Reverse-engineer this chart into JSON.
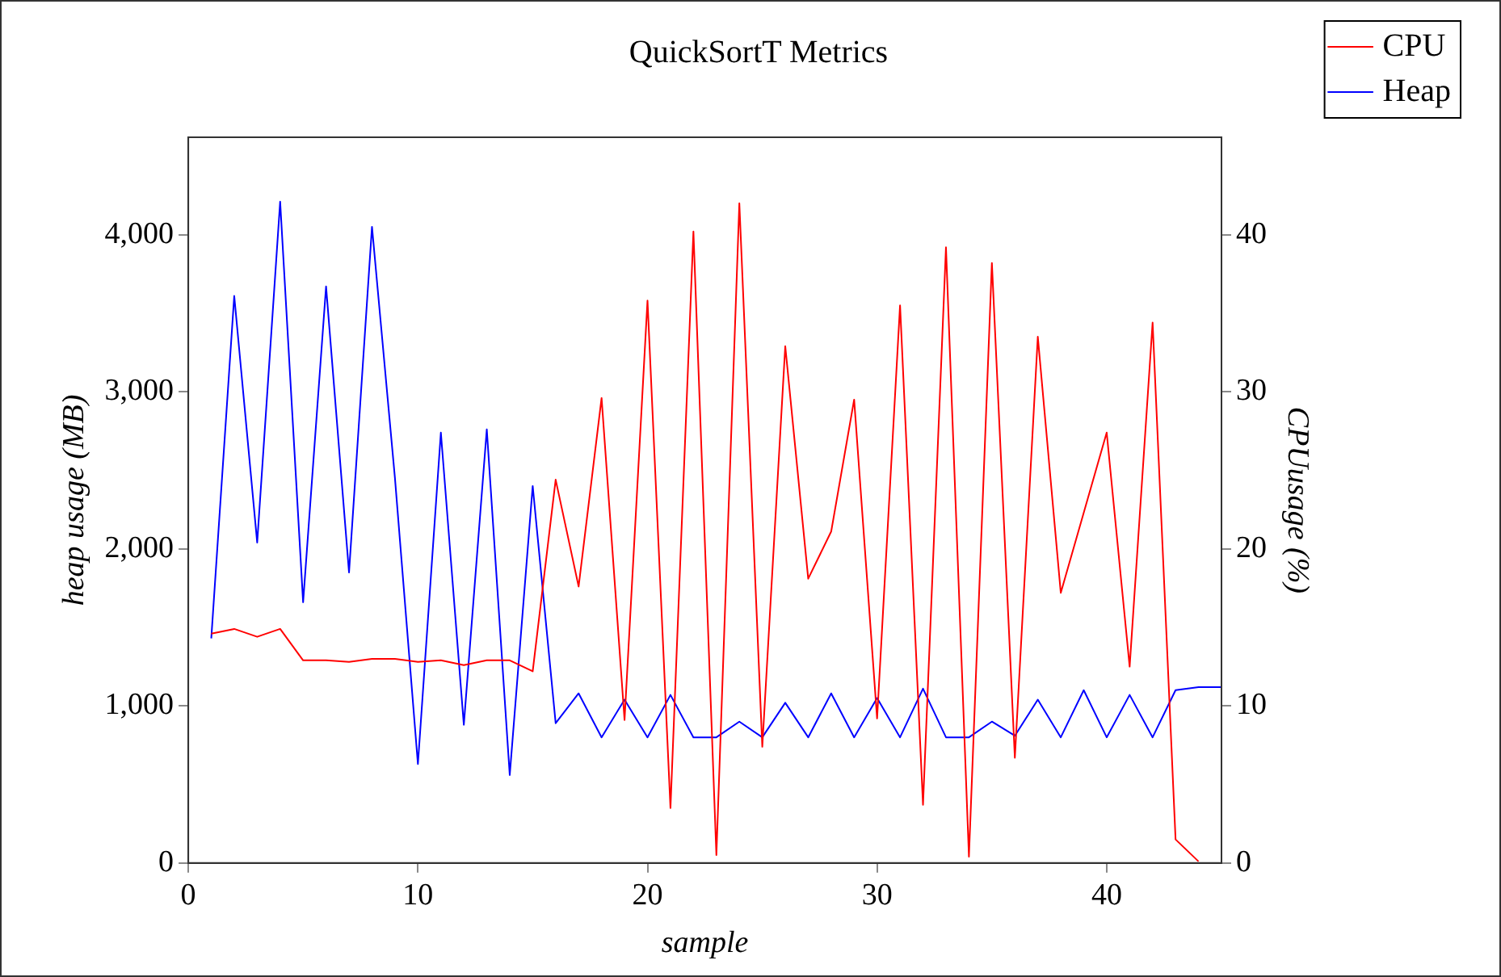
{
  "chart_data": {
    "type": "line",
    "title": "QuickSortT Metrics",
    "xlabel": "sample",
    "ylabel": "heap usage (MB)",
    "y2label": "CPUusage (%)",
    "x": [
      1,
      2,
      3,
      4,
      5,
      6,
      7,
      8,
      9,
      10,
      11,
      12,
      13,
      14,
      15,
      16,
      17,
      18,
      19,
      20,
      21,
      22,
      23,
      24,
      25,
      26,
      27,
      28,
      29,
      30,
      31,
      32,
      33,
      34,
      35,
      36,
      37,
      38,
      39,
      40,
      41,
      42,
      43,
      44,
      45
    ],
    "series": [
      {
        "name": "CPU",
        "color": "#ff0000",
        "axis": "y2",
        "x": [
          1,
          2,
          3,
          4,
          5,
          6,
          7,
          8,
          9,
          10,
          11,
          12,
          13,
          14,
          15,
          16,
          17,
          18,
          19,
          20,
          21,
          22,
          23,
          24,
          25,
          26,
          27,
          28,
          29,
          30,
          31,
          32,
          33,
          34,
          35,
          36,
          37,
          38,
          39,
          40,
          41,
          42,
          43,
          44
        ],
        "values": [
          14.6,
          14.9,
          14.4,
          14.9,
          12.9,
          12.9,
          12.8,
          13.0,
          13.0,
          12.8,
          12.9,
          12.6,
          12.9,
          12.9,
          12.2,
          24.4,
          17.6,
          29.6,
          9.1,
          35.8,
          3.5,
          40.2,
          0.5,
          42.0,
          7.4,
          32.9,
          18.1,
          21.1,
          29.5,
          9.2,
          35.5,
          3.7,
          39.2,
          0.4,
          38.2,
          6.7,
          33.5,
          17.2,
          22.3,
          27.4,
          12.5,
          34.4,
          1.5,
          0.1
        ]
      },
      {
        "name": "Heap",
        "color": "#0000ff",
        "values": [
          1430,
          3610,
          2040,
          4210,
          1660,
          3670,
          1850,
          4050,
          2450,
          630,
          2740,
          880,
          2760,
          560,
          2400,
          890,
          1080,
          800,
          1040,
          800,
          1070,
          800,
          800,
          900,
          800,
          1020,
          800,
          1080,
          800,
          1050,
          800,
          1110,
          800,
          800,
          900,
          810,
          1040,
          800,
          1100,
          800,
          1070,
          800,
          1100,
          1120,
          1120
        ]
      }
    ],
    "xlim": [
      0,
      45
    ],
    "xticks": [
      0,
      10,
      20,
      30,
      40
    ],
    "ylim": [
      0,
      4620
    ],
    "yticks": [
      0,
      {
        "value": 1000,
        "label": "1,000"
      },
      {
        "value": 2000,
        "label": "2,000"
      },
      {
        "value": 3000,
        "label": "3,000"
      },
      {
        "value": 4000,
        "label": "4,000"
      }
    ],
    "y2lim": [
      0,
      46.2
    ],
    "y2ticks": [
      0,
      10,
      20,
      30,
      40
    ],
    "grid": false,
    "legend": "top right",
    "marker": "none",
    "line_style": "solid"
  }
}
